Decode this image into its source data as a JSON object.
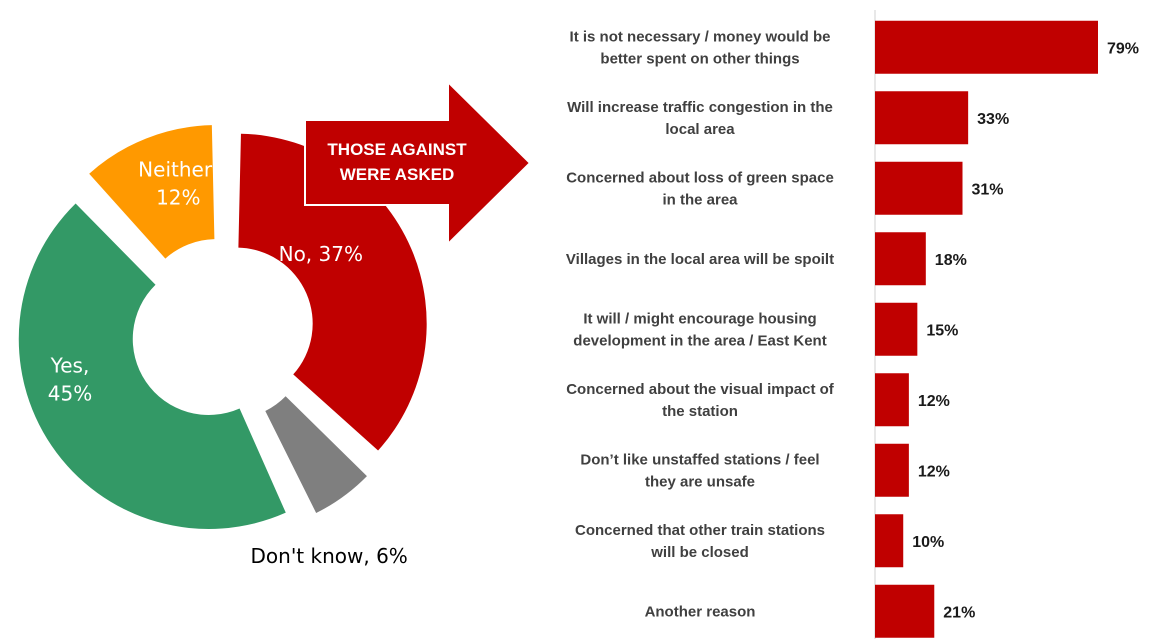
{
  "chart_data": [
    {
      "type": "pie",
      "subtype": "exploded-donut",
      "slices": [
        {
          "name": "No",
          "value": 37,
          "label": "No, 37%",
          "color": "#c00000",
          "label_color": "#ffffff"
        },
        {
          "name": "Don't know",
          "value": 6,
          "label": "Don't know, 6%",
          "color": "#7f7f7f",
          "label_color": "#000000"
        },
        {
          "name": "Yes",
          "value": 45,
          "label_lines": [
            "Yes,",
            "45%"
          ],
          "color": "#339966",
          "label_color": "#ffffff"
        },
        {
          "name": "Neither",
          "value": 12,
          "label_lines": [
            "Neither,",
            "12%"
          ],
          "color": "#ff9900",
          "label_color": "#ffffff"
        }
      ]
    },
    {
      "type": "bar",
      "orientation": "horizontal",
      "color": "#c00000",
      "xlim": [
        0,
        100
      ],
      "categories": [
        [
          "It is not necessary / money would be",
          "better spent on other things"
        ],
        [
          "Will increase traffic congestion in the",
          "local area"
        ],
        [
          "Concerned about loss of green space",
          "in the area"
        ],
        [
          "Villages in the local area will be spoilt"
        ],
        [
          "It will / might encourage housing",
          "development in the area / East Kent"
        ],
        [
          "Concerned about the visual impact of",
          "the station"
        ],
        [
          "Don’t like unstaffed stations / feel",
          "they are unsafe"
        ],
        [
          "Concerned that other train stations",
          "will be closed"
        ],
        [
          "Another reason"
        ]
      ],
      "values": [
        79,
        33,
        31,
        18,
        15,
        12,
        12,
        10,
        21
      ],
      "value_labels": [
        "79%",
        "33%",
        "31%",
        "18%",
        "15%",
        "12%",
        "12%",
        "10%",
        "21%"
      ]
    }
  ],
  "callout": {
    "lines": [
      "THOSE AGAINST",
      "WERE ASKED"
    ],
    "color": "#c00000"
  }
}
